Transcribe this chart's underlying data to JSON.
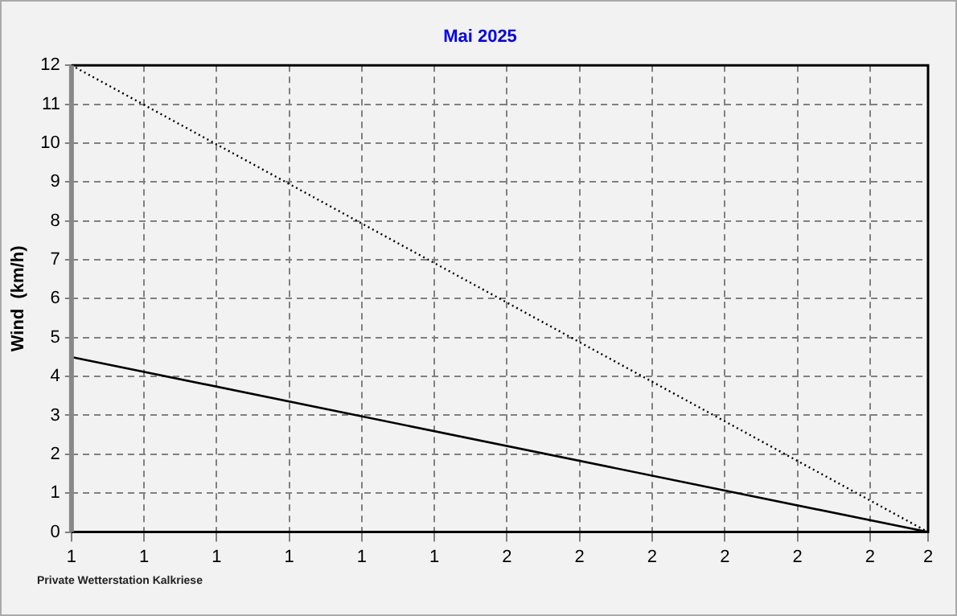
{
  "chart_data": {
    "type": "line",
    "title": "Mai 2025",
    "ylabel": "Wind  (km/h)",
    "series": [
      {
        "color": "#000000",
        "line_style": "dotted",
        "values": [
          12,
          0
        ]
      },
      {
        "color": "#000000",
        "line_style": "solid",
        "values": [
          4.5,
          0
        ]
      }
    ],
    "x": [
      1,
      2.18
    ],
    "xlim": [
      1,
      2.18
    ],
    "xticks": [
      {
        "value": 1,
        "label": "1"
      },
      {
        "value": 1.1,
        "label": "1"
      },
      {
        "value": 1.2,
        "label": "1"
      },
      {
        "value": 1.3,
        "label": "1"
      },
      {
        "value": 1.4,
        "label": "1"
      },
      {
        "value": 1.5,
        "label": "1"
      },
      {
        "value": 1.6,
        "label": "2"
      },
      {
        "value": 1.7,
        "label": "2"
      },
      {
        "value": 1.8,
        "label": "2"
      },
      {
        "value": 1.9,
        "label": "2"
      },
      {
        "value": 2,
        "label": "2"
      },
      {
        "value": 2.1,
        "label": "2"
      },
      {
        "value": 2.18,
        "label": "2"
      }
    ],
    "ylim": [
      0,
      12
    ],
    "yticks": [
      0,
      1,
      2,
      3,
      4,
      5,
      6,
      7,
      8,
      9,
      10,
      11,
      12
    ],
    "grid": true,
    "marker": "none",
    "legend": false,
    "annotations": [
      "Private Wetterstation Kalkriese"
    ]
  }
}
